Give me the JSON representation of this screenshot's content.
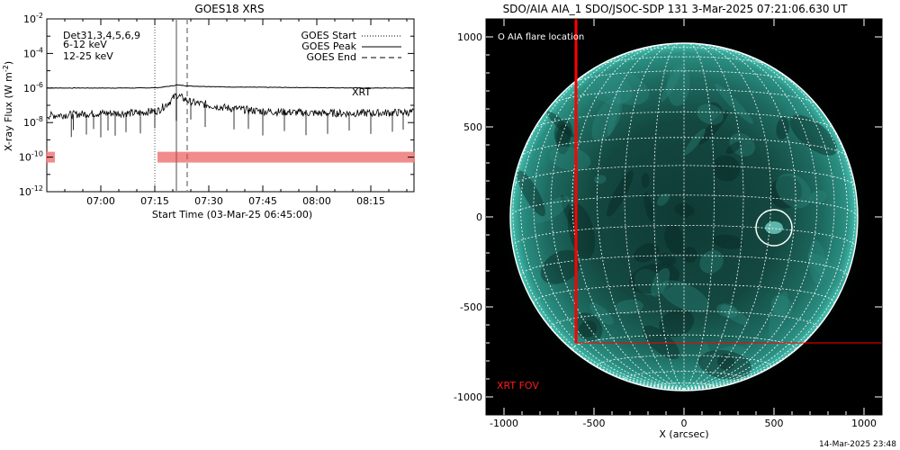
{
  "left_panel": {
    "title": "GOES18 XRS",
    "ylabel_text": "X-ray Flux (W m",
    "ylabel_sup": "-2",
    "ylabel_close": ")",
    "xlabel": "Start Time (03-Mar-25 06:45:00)",
    "channel_labels": [
      {
        "text": "Det31,3,4,5,6,9",
        "color": "#000000"
      },
      {
        "text": "6-12 keV",
        "color": "#e000e0"
      },
      {
        "text": "12-25 keV",
        "color": "#00c000"
      }
    ],
    "legend": [
      {
        "label": "GOES Start",
        "style": "dotted"
      },
      {
        "label": "GOES Peak",
        "style": "solid"
      },
      {
        "label": "GOES End",
        "style": "dashed"
      }
    ],
    "xrt_label": "XRT",
    "xrt_color": "#dd0000"
  },
  "right_panel": {
    "title": "SDO/AIA AIA_1 SDO/JSOC-SDP 131  3-Mar-2025 07:21:06.630 UT",
    "xlabel": "X (arcsec)",
    "flare_legend": "O AIA flare location",
    "xrt_fov_label": "XRT FOV",
    "x_ticks": [
      "-1000",
      "-500",
      "0",
      "500",
      "1000"
    ],
    "y_ticks": [
      "1000",
      "500",
      "0",
      "-500",
      "-1000"
    ]
  },
  "footer_timestamp": "14-Mar-2025 23:48",
  "chart_data": [
    {
      "type": "line",
      "title": "GOES18 XRS",
      "xlabel": "Start Time (03-Mar-25 06:45:00)",
      "ylabel": "X-ray Flux (W m^-2)",
      "y_scale": "log",
      "xlim": [
        "06:45",
        "08:27"
      ],
      "ylim": [
        1e-12,
        0.01
      ],
      "x_tick_labels": [
        "07:00",
        "07:15",
        "07:30",
        "07:45",
        "08:00",
        "08:15"
      ],
      "y_tick_labels": [
        {
          "base": "10",
          "exp": "-2"
        },
        {
          "base": "10",
          "exp": "-4"
        },
        {
          "base": "10",
          "exp": "-6"
        },
        {
          "base": "10",
          "exp": "-8"
        },
        {
          "base": "10",
          "exp": "-10"
        },
        {
          "base": "10",
          "exp": "-12"
        }
      ],
      "y_tick_values": [
        0.01,
        0.0001,
        1e-06,
        1e-08,
        1e-10,
        1e-12
      ],
      "vertical_lines": {
        "goes_start": "07:15",
        "goes_peak": "07:21",
        "goes_end": "07:24"
      },
      "series": [
        {
          "name": "",
          "x": [
            "06:45",
            "07:00",
            "07:10",
            "07:16",
            "07:20",
            "07:21",
            "07:25",
            "07:35",
            "07:45",
            "08:00",
            "08:15",
            "08:27"
          ],
          "values": [
            1e-06,
            1e-06,
            1e-06,
            1.05e-06,
            1.35e-06,
            1.5e-06,
            1.3e-06,
            1.15e-06,
            1.1e-06,
            1.05e-06,
            1e-06,
            1e-06
          ]
        },
        {
          "name": "",
          "x": [
            "06:45",
            "07:00",
            "07:10",
            "07:16",
            "07:19",
            "07:21",
            "07:25",
            "07:35",
            "07:45",
            "08:00",
            "08:15",
            "08:27"
          ],
          "values": [
            2.5e-08,
            3.5e-08,
            3.5e-08,
            5e-08,
            1.5e-07,
            4e-07,
            1.5e-07,
            7e-08,
            4.5e-08,
            3.5e-08,
            3.5e-08,
            4e-08
          ]
        }
      ],
      "xrt_observations": {
        "value": 1e-10,
        "intervals": [
          [
            "06:45",
            "06:47"
          ],
          [
            "07:16",
            "08:27"
          ]
        ]
      }
    },
    {
      "type": "heatmap",
      "title": "SDO/AIA AIA_1 SDO/JSOC-SDP 131  3-Mar-2025 07:21:06.630 UT",
      "xlabel": "X (arcsec)",
      "xlim": [
        -1100,
        1100
      ],
      "ylim": [
        -1100,
        1100
      ],
      "solar_radius_arcsec": 965,
      "grid": true,
      "flare_location": {
        "x": 500,
        "y": -60
      },
      "xrt_fov": {
        "x0": -600,
        "x1": 1100,
        "y0": -700,
        "y1": 1100
      }
    }
  ]
}
